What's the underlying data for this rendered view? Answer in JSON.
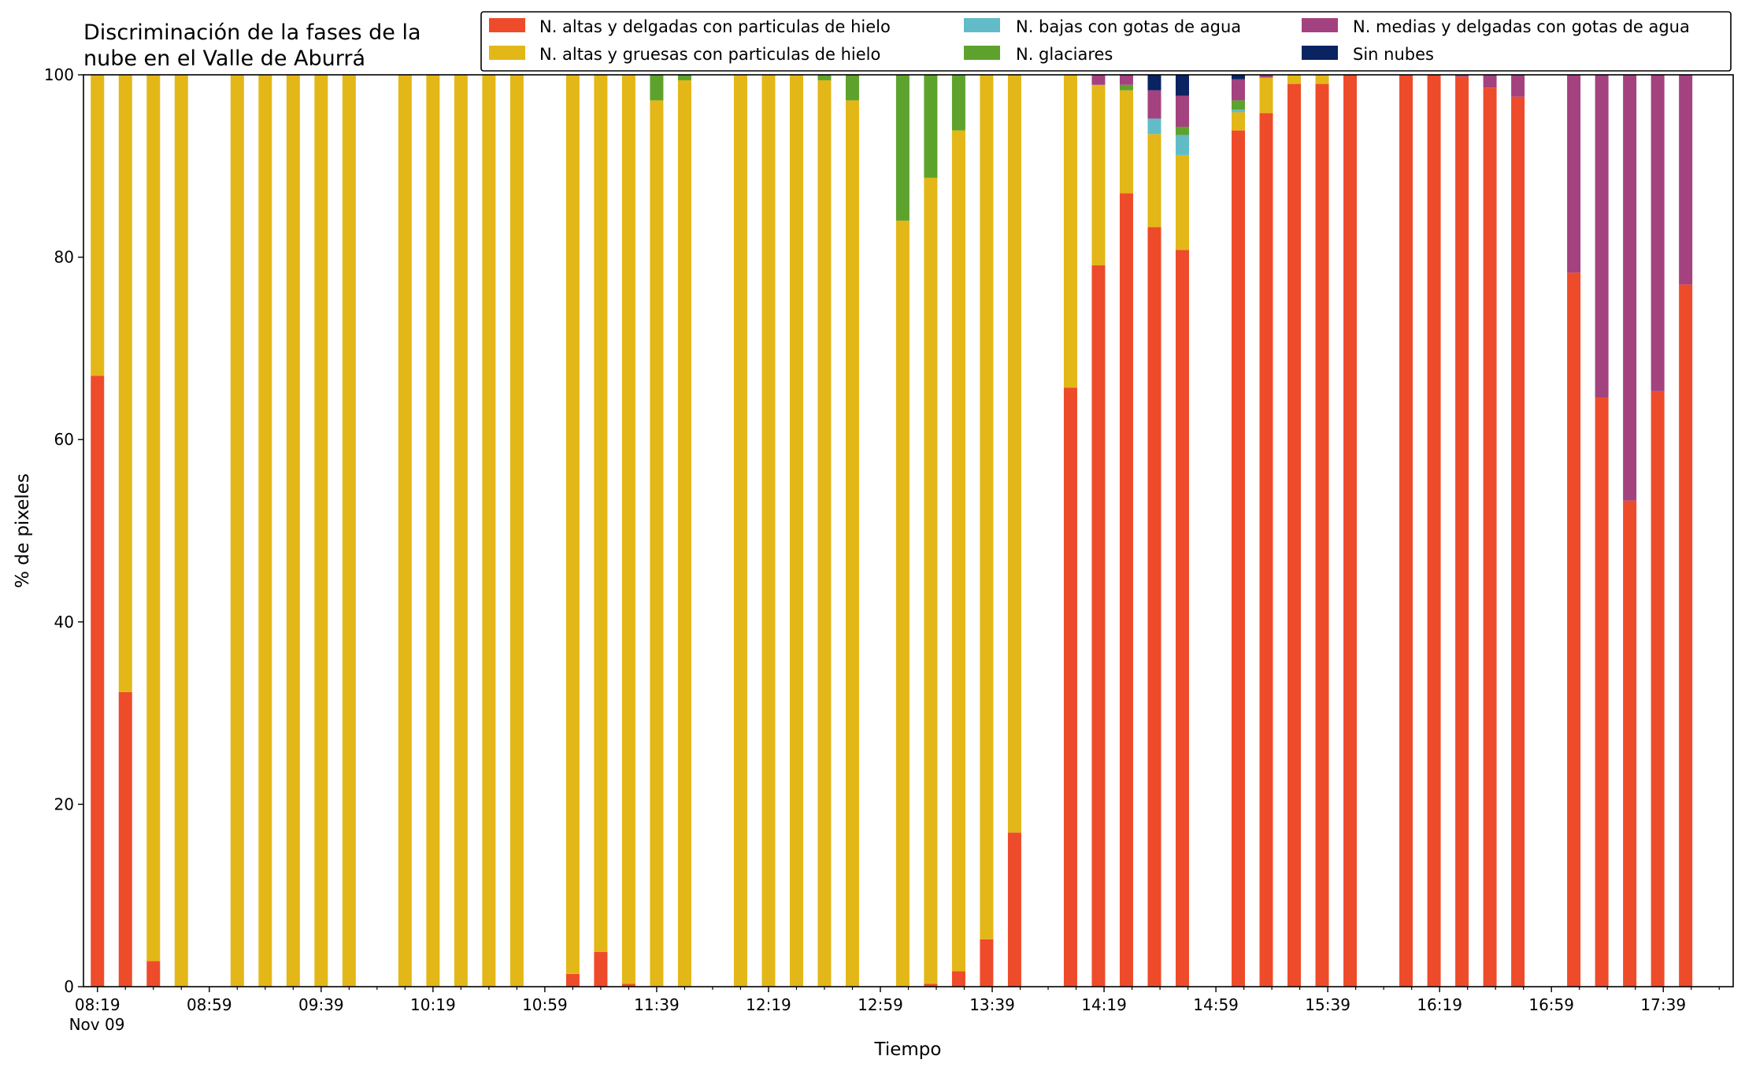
{
  "chart_data": {
    "type": "bar",
    "stacked": true,
    "title_lines": [
      "Discriminación de la fases de la",
      "nube en el Valle de Aburrá"
    ],
    "xlabel": "Tiempo",
    "ylabel": "% de pixeles",
    "ylim": [
      0,
      100
    ],
    "yticks": [
      0,
      20,
      40,
      60,
      80,
      100
    ],
    "xlim": [
      "08:14",
      "18:04"
    ],
    "date_label": "Nov 09",
    "legend_position": "top-right",
    "grid": false,
    "series": [
      {
        "name": "N. altas y delgadas con particulas de hielo",
        "color": "#ee4b2b"
      },
      {
        "name": "N. altas y gruesas con particulas de hielo",
        "color": "#e3b717"
      },
      {
        "name": "N. bajas con gotas de agua",
        "color": "#62bcc8"
      },
      {
        "name": "N. glaciares",
        "color": "#5ea22e"
      },
      {
        "name": "N. medias y delgadas con gotas de agua",
        "color": "#a3427e"
      },
      {
        "name": "Sin nubes",
        "color": "#0a2361"
      }
    ],
    "x_major_ticks": [
      "08:19",
      "08:59",
      "09:39",
      "10:19",
      "10:59",
      "11:39",
      "12:19",
      "12:59",
      "13:39",
      "14:19",
      "14:59",
      "15:39",
      "16:19",
      "16:59",
      "17:39"
    ],
    "x_minor_ticks": [
      "08:29",
      "08:39",
      "08:49",
      "09:09",
      "09:19",
      "09:29",
      "09:49",
      "09:59",
      "10:09",
      "10:29",
      "10:39",
      "10:49",
      "11:09",
      "11:19",
      "11:29",
      "11:49",
      "11:59",
      "12:09",
      "12:29",
      "12:39",
      "12:49",
      "13:09",
      "13:19",
      "13:29",
      "13:49",
      "13:59",
      "14:09",
      "14:29",
      "14:39",
      "14:49",
      "15:09",
      "15:19",
      "15:29",
      "15:49",
      "15:59",
      "16:09",
      "16:29",
      "16:39",
      "16:49",
      "17:09",
      "17:19",
      "17:29",
      "17:49",
      "17:59"
    ],
    "times": [
      "08:19",
      "08:29",
      "08:39",
      "08:49",
      "09:09",
      "09:19",
      "09:29",
      "09:39",
      "09:49",
      "10:09",
      "10:19",
      "10:29",
      "10:39",
      "10:49",
      "11:09",
      "11:19",
      "11:29",
      "11:39",
      "11:49",
      "12:09",
      "12:19",
      "12:29",
      "12:39",
      "12:49",
      "13:07",
      "13:17",
      "13:27",
      "13:37",
      "13:47",
      "14:07",
      "14:17",
      "14:27",
      "14:37",
      "14:47",
      "15:07",
      "15:17",
      "15:27",
      "15:37",
      "15:47",
      "16:07",
      "16:17",
      "16:27",
      "16:37",
      "16:47",
      "17:07",
      "17:17",
      "17:27",
      "17:37",
      "17:47"
    ],
    "values": [
      [
        67.0,
        33.0,
        0,
        0,
        0,
        0
      ],
      [
        32.3,
        67.7,
        0,
        0,
        0,
        0
      ],
      [
        2.8,
        97.2,
        0,
        0,
        0,
        0
      ],
      [
        0,
        100,
        0,
        0,
        0,
        0
      ],
      [
        0,
        100,
        0,
        0,
        0,
        0
      ],
      [
        0,
        100,
        0,
        0,
        0,
        0
      ],
      [
        0,
        100,
        0,
        0,
        0,
        0
      ],
      [
        0,
        100,
        0,
        0,
        0,
        0
      ],
      [
        0,
        100,
        0,
        0,
        0,
        0
      ],
      [
        0,
        100,
        0,
        0,
        0,
        0
      ],
      [
        0,
        100,
        0,
        0,
        0,
        0
      ],
      [
        0,
        100,
        0,
        0,
        0,
        0
      ],
      [
        0,
        100,
        0,
        0,
        0,
        0
      ],
      [
        0,
        100,
        0,
        0,
        0,
        0
      ],
      [
        1.4,
        98.6,
        0,
        0,
        0,
        0
      ],
      [
        3.8,
        96.2,
        0,
        0,
        0,
        0
      ],
      [
        0.3,
        99.7,
        0,
        0,
        0,
        0
      ],
      [
        0,
        97.2,
        0,
        2.8,
        0,
        0
      ],
      [
        0,
        99.4,
        0,
        0.6,
        0,
        0
      ],
      [
        0,
        100,
        0,
        0,
        0,
        0
      ],
      [
        0,
        100,
        0,
        0,
        0,
        0
      ],
      [
        0,
        100,
        0,
        0,
        0,
        0
      ],
      [
        0,
        99.4,
        0,
        0.6,
        0,
        0
      ],
      [
        0,
        97.2,
        0,
        2.8,
        0,
        0
      ],
      [
        0,
        84.0,
        0,
        16.0,
        0,
        0
      ],
      [
        0.3,
        88.4,
        0,
        11.3,
        0,
        0
      ],
      [
        1.7,
        92.2,
        0,
        6.1,
        0,
        0
      ],
      [
        5.2,
        94.8,
        0,
        0,
        0,
        0
      ],
      [
        16.9,
        83.1,
        0,
        0,
        0,
        0
      ],
      [
        65.7,
        34.3,
        0,
        0,
        0,
        0
      ],
      [
        79.1,
        19.8,
        0,
        0,
        1.1,
        0
      ],
      [
        87.0,
        11.3,
        0,
        0.6,
        1.1,
        0
      ],
      [
        83.3,
        10.2,
        1.7,
        0,
        3.1,
        1.7
      ],
      [
        80.8,
        10.4,
        2.2,
        0.9,
        3.4,
        2.3
      ],
      [
        93.9,
        2.0,
        0.3,
        1.0,
        2.3,
        0.5
      ],
      [
        95.8,
        3.9,
        0,
        0,
        0.3,
        0
      ],
      [
        99.0,
        1.0,
        0,
        0,
        0,
        0
      ],
      [
        99.0,
        1.0,
        0,
        0,
        0,
        0
      ],
      [
        100,
        0,
        0,
        0,
        0,
        0
      ],
      [
        100,
        0,
        0,
        0,
        0,
        0
      ],
      [
        100,
        0,
        0,
        0,
        0,
        0
      ],
      [
        99.8,
        0,
        0,
        0,
        0.2,
        0
      ],
      [
        98.6,
        0,
        0,
        0,
        1.4,
        0
      ],
      [
        97.6,
        0,
        0,
        0,
        2.4,
        0
      ],
      [
        78.3,
        0,
        0,
        0,
        21.7,
        0
      ],
      [
        64.6,
        0,
        0,
        0,
        35.4,
        0
      ],
      [
        53.3,
        0,
        0,
        0,
        46.7,
        0
      ],
      [
        65.3,
        0,
        0,
        0,
        34.7,
        0
      ],
      [
        77.0,
        0,
        0,
        0,
        23.0,
        0
      ]
    ]
  }
}
